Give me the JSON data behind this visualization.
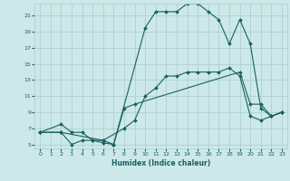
{
  "xlabel": "Humidex (Indice chaleur)",
  "bg_color": "#cce8e8",
  "line_color": "#1a6060",
  "grid_color": "#aacccc",
  "xlim": [
    -0.5,
    23.5
  ],
  "ylim": [
    4.5,
    22.5
  ],
  "xticks": [
    0,
    1,
    2,
    3,
    4,
    5,
    6,
    7,
    8,
    9,
    10,
    11,
    12,
    13,
    14,
    15,
    16,
    17,
    18,
    19,
    20,
    21,
    22,
    23
  ],
  "yticks": [
    5,
    7,
    9,
    11,
    13,
    15,
    17,
    19,
    21
  ],
  "line1_x": [
    0,
    2,
    3,
    4,
    5,
    6,
    7,
    10,
    11,
    12,
    13,
    14,
    15,
    16,
    17,
    18,
    19,
    20,
    21,
    22,
    23
  ],
  "line1_y": [
    6.5,
    7.5,
    6.5,
    6.5,
    5.5,
    5.2,
    5.0,
    19.5,
    21.5,
    21.5,
    21.5,
    22.5,
    22.5,
    21.5,
    20.5,
    17.5,
    20.5,
    17.5,
    9.5,
    8.5,
    9.0
  ],
  "line2_x": [
    0,
    2,
    3,
    4,
    5,
    6,
    7,
    8,
    9,
    19,
    20,
    21,
    22,
    23
  ],
  "line2_y": [
    6.5,
    6.5,
    5.0,
    5.5,
    5.5,
    5.5,
    5.0,
    9.5,
    10.0,
    14.0,
    10.0,
    10.0,
    8.5,
    9.0
  ],
  "line3_x": [
    0,
    2,
    6,
    8,
    9,
    10,
    11,
    12,
    13,
    14,
    15,
    16,
    17,
    18,
    19,
    20,
    21,
    22,
    23
  ],
  "line3_y": [
    6.5,
    6.5,
    5.5,
    7.0,
    8.0,
    11.0,
    12.0,
    13.5,
    13.5,
    14.0,
    14.0,
    14.0,
    14.0,
    14.5,
    13.5,
    8.5,
    8.0,
    8.5,
    9.0
  ]
}
